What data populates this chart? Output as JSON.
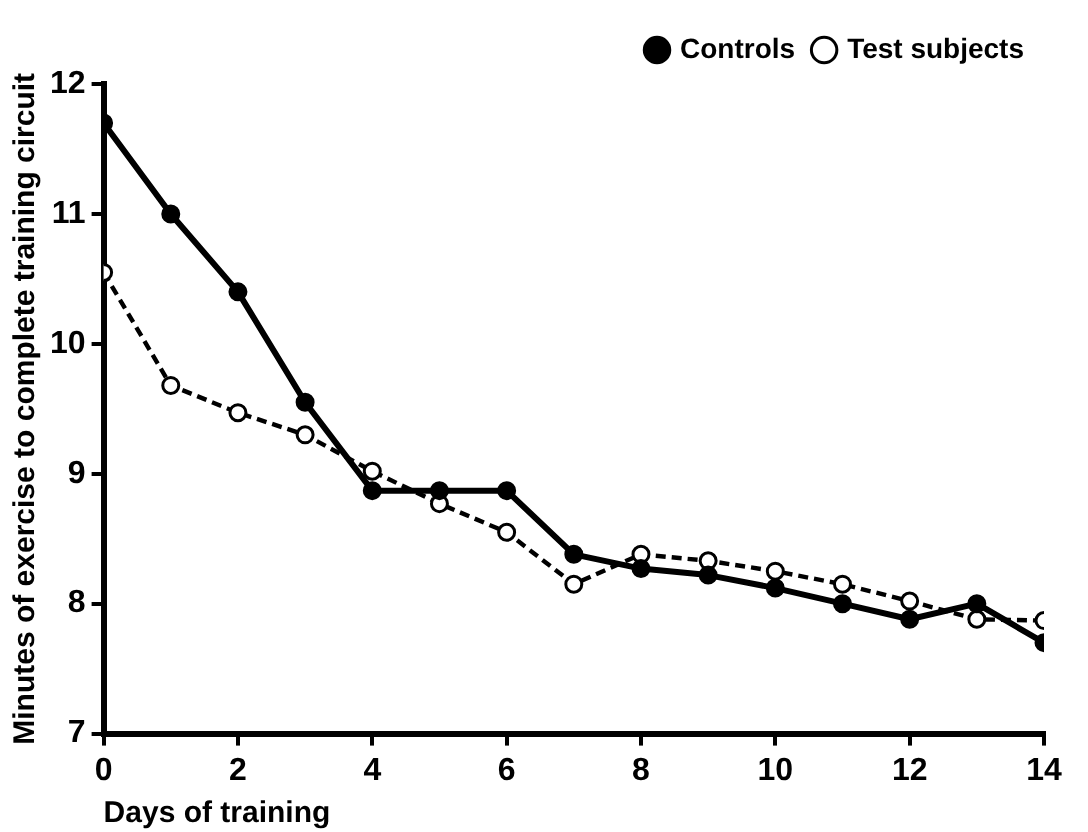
{
  "chart_data": {
    "type": "line",
    "xlabel": "Days of training",
    "ylabel": "Minutes of exercise to complete training circuit",
    "x": [
      0,
      1,
      2,
      3,
      4,
      5,
      6,
      7,
      8,
      9,
      10,
      11,
      12,
      13,
      14
    ],
    "series": [
      {
        "name": "Controls",
        "color": "#000000",
        "line_style": "solid",
        "marker": "circle",
        "values": [
          11.7,
          11.0,
          10.4,
          9.55,
          8.87,
          8.87,
          8.87,
          8.38,
          8.27,
          8.22,
          8.12,
          8.0,
          7.88,
          8.0,
          7.7
        ]
      },
      {
        "name": "Test subjects",
        "color": "#000000",
        "line_style": "dashed",
        "marker": "circle",
        "values": [
          10.55,
          9.68,
          9.47,
          9.3,
          9.02,
          8.77,
          8.55,
          8.15,
          8.38,
          8.33,
          8.25,
          8.15,
          8.02,
          7.88,
          7.87
        ]
      }
    ],
    "xlim": [
      0,
      14
    ],
    "xticks": [
      0,
      2,
      4,
      6,
      8,
      10,
      12,
      14
    ],
    "ylim": [
      7,
      12
    ],
    "yticks": [
      7,
      8,
      9,
      10,
      11,
      12
    ],
    "grid": false,
    "legend": "top right"
  }
}
